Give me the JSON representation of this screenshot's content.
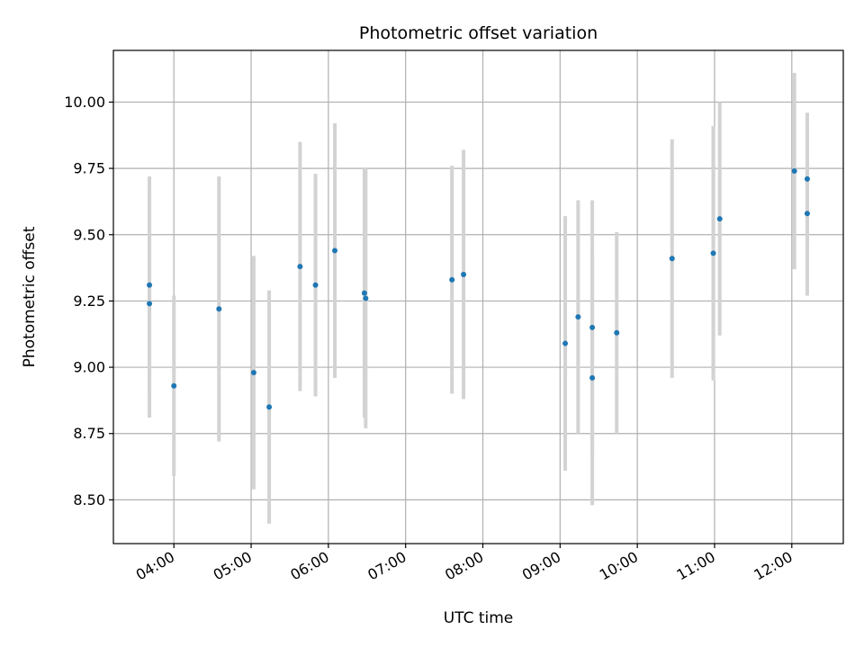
{
  "chart_data": {
    "type": "scatter",
    "title": "Photometric offset variation",
    "xlabel": "UTC time",
    "ylabel": "Photometric offset",
    "x_range": [
      "03:13",
      "12:40"
    ],
    "ylim": [
      8.335,
      10.195
    ],
    "grid": true,
    "legend": "none",
    "x_ticks": [
      "04:00",
      "05:00",
      "06:00",
      "07:00",
      "08:00",
      "09:00",
      "10:00",
      "11:00",
      "12:00"
    ],
    "y_ticks": [
      "8.50",
      "8.75",
      "9.00",
      "9.25",
      "9.50",
      "9.75",
      "10.00"
    ],
    "colors": {
      "point": "#1f77b4",
      "errorbar": "#d3d3d3",
      "grid": "#b0b0b0"
    },
    "points": [
      {
        "x": "03:41",
        "y": 9.31,
        "err": 0.41
      },
      {
        "x": "03:41",
        "y": 9.24,
        "err": 0.43
      },
      {
        "x": "04:00",
        "y": 8.93,
        "err": 0.34
      },
      {
        "x": "04:35",
        "y": 9.22,
        "err": 0.5
      },
      {
        "x": "05:02",
        "y": 8.98,
        "err": 0.44
      },
      {
        "x": "05:14",
        "y": 8.85,
        "err": 0.44
      },
      {
        "x": "05:38",
        "y": 9.38,
        "err": 0.47
      },
      {
        "x": "05:50",
        "y": 9.31,
        "err": 0.42
      },
      {
        "x": "06:05",
        "y": 9.44,
        "err": 0.48
      },
      {
        "x": "06:28",
        "y": 9.28,
        "err": 0.47
      },
      {
        "x": "06:29",
        "y": 9.26,
        "err": 0.49
      },
      {
        "x": "07:36",
        "y": 9.33,
        "err": 0.43
      },
      {
        "x": "07:45",
        "y": 9.35,
        "err": 0.47
      },
      {
        "x": "09:04",
        "y": 9.09,
        "err": 0.48
      },
      {
        "x": "09:14",
        "y": 9.19,
        "err": 0.44
      },
      {
        "x": "09:25",
        "y": 9.15,
        "err": 0.48
      },
      {
        "x": "09:25",
        "y": 8.96,
        "err": 0.48
      },
      {
        "x": "09:44",
        "y": 9.13,
        "err": 0.38
      },
      {
        "x": "10:27",
        "y": 9.41,
        "err": 0.45
      },
      {
        "x": "10:59",
        "y": 9.43,
        "err": 0.48
      },
      {
        "x": "11:04",
        "y": 9.56,
        "err": 0.44
      },
      {
        "x": "12:02",
        "y": 9.74,
        "err": 0.37
      },
      {
        "x": "12:12",
        "y": 9.71,
        "err": 0.25
      },
      {
        "x": "12:12",
        "y": 9.58,
        "err": 0.31
      }
    ]
  }
}
